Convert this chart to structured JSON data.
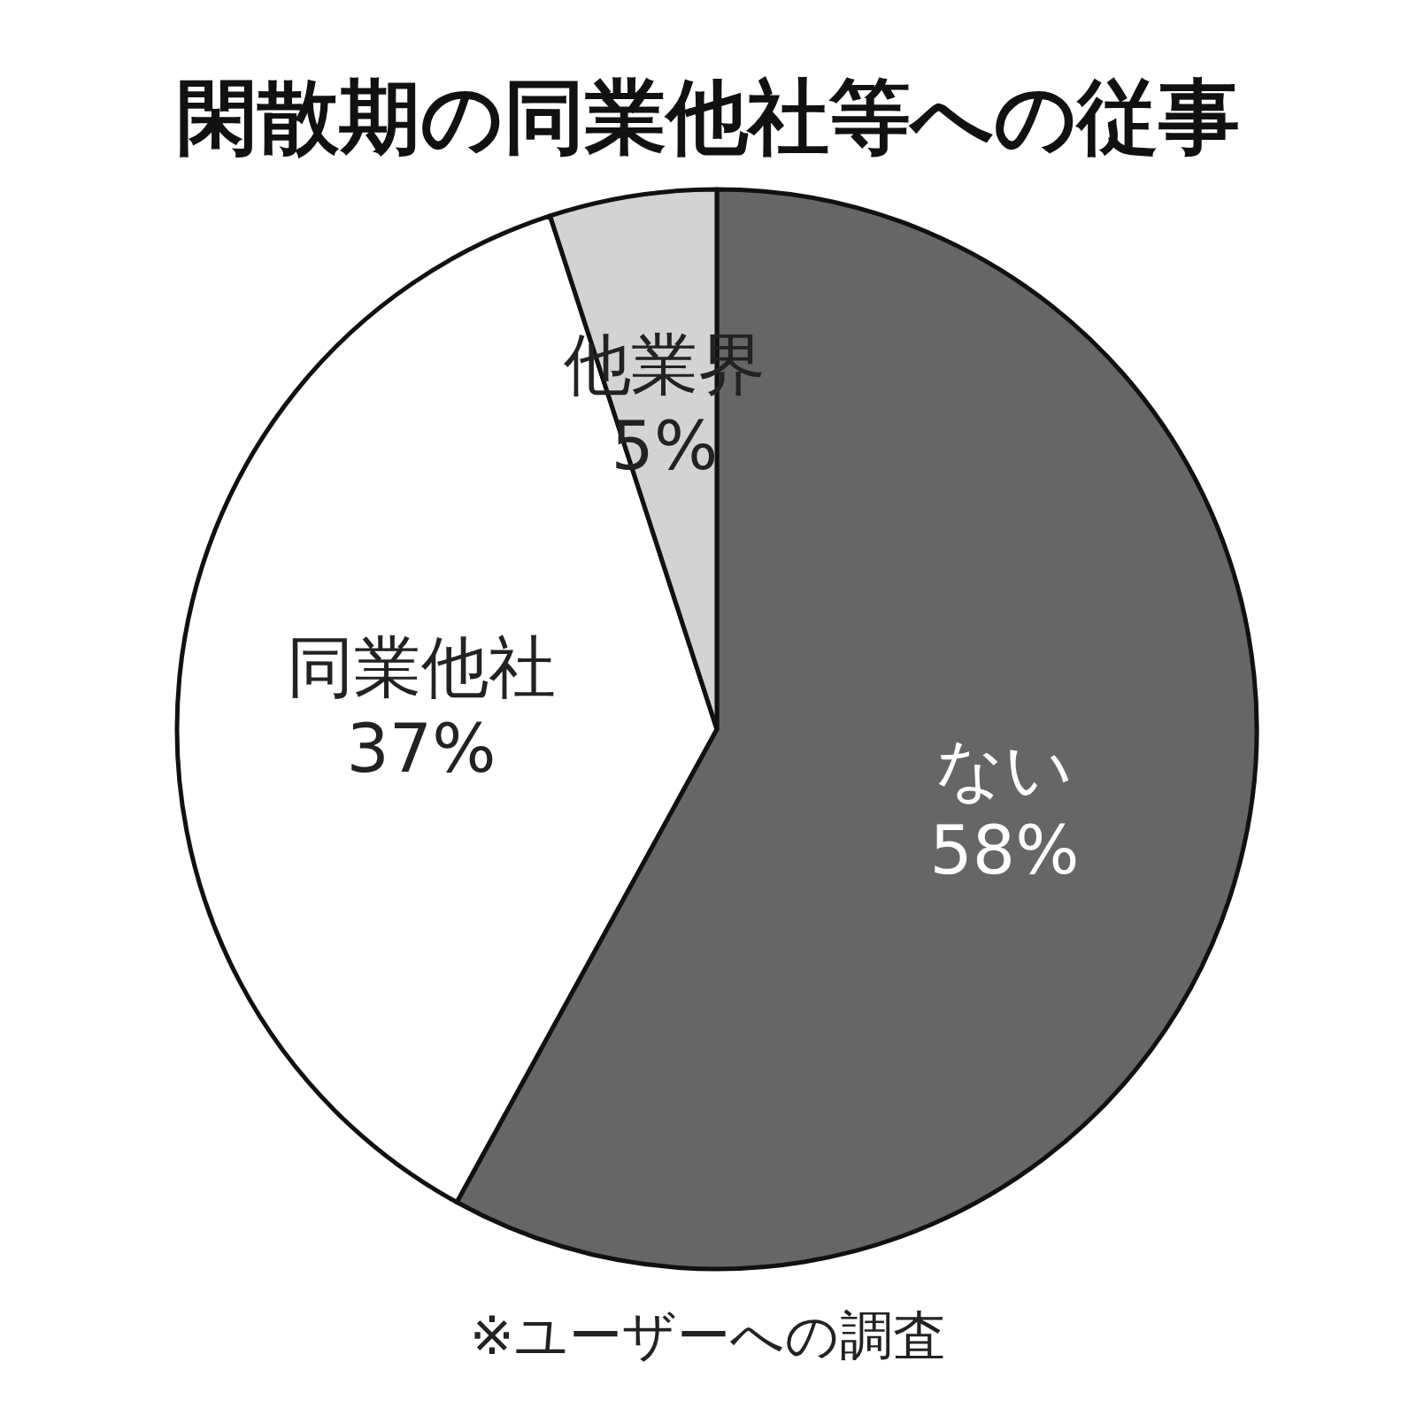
{
  "chart_data": {
    "type": "pie",
    "title": "閑散期の同業他社等への従事",
    "categories": [
      "ない",
      "同業他社",
      "他業界"
    ],
    "values": [
      58,
      37,
      5
    ],
    "value_labels": [
      "58%",
      "37%",
      "5%"
    ],
    "colors": [
      "#666666",
      "#ffffff",
      "#d3d3d3"
    ],
    "annotations": [
      "※ユーザーへの調査"
    ]
  }
}
